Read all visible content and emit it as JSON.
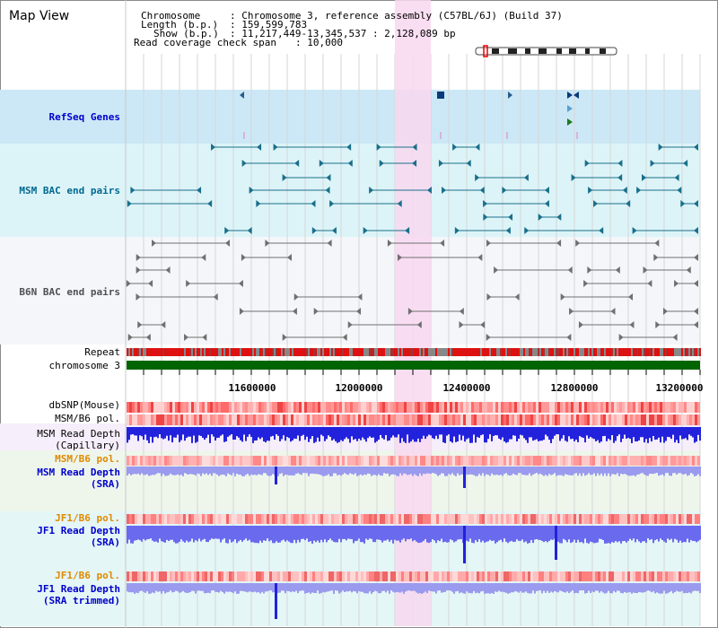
{
  "title": "Map View",
  "header": {
    "chromosome_label": "Chromosome",
    "chromosome_value": ": Chromosome 3, reference assembly (C57BL/6J) (Build 37)",
    "length_label": "Length (b.p.)",
    "length_value": ": 159,599,783",
    "show_label": "Show (b.p.)",
    "show_value": ": 11,217,449-13,345,537 : 2,128,089 bp",
    "coverage_label": "Read coverage check span",
    "coverage_value": ": 10,000"
  },
  "tracks": {
    "refseq": "RefSeq Genes",
    "msm_bac": "MSM BAC end pairs",
    "b6n_bac": "B6N BAC end pairs",
    "repeat": "Repeat",
    "chromosome": "chromosome 3",
    "dbsnp": "dbSNP(Mouse)",
    "msm_b6_pol": "MSM/B6 pol.",
    "msm_depth_cap_1": "MSM Read Depth",
    "msm_depth_cap_2": "(Capillary)",
    "msm_b6_pol_2": "MSM/B6 pol.",
    "msm_depth_sra_1": "MSM Read Depth",
    "msm_depth_sra_2": "(SRA)",
    "jf1_b6_pol": "JF1/B6 pol.",
    "jf1_depth_sra_1": "JF1 Read Depth",
    "jf1_depth_sra_2": "(SRA)",
    "jf1_b6_pol_2": "JF1/B6 pol.",
    "jf1_depth_trim_1": "JF1 Read Depth",
    "jf1_depth_trim_2": "(SRA trimmed)"
  },
  "axis": {
    "ticks": [
      "11600000",
      "12000000",
      "12400000",
      "12800000",
      "13200000"
    ]
  },
  "colors": {
    "highlight": "#f8d8f0",
    "chromosome_bar": "#006400",
    "repeat_red": "#dd1111",
    "depth_blue": "#2222dd",
    "depth_light": "#9a9aee"
  }
}
